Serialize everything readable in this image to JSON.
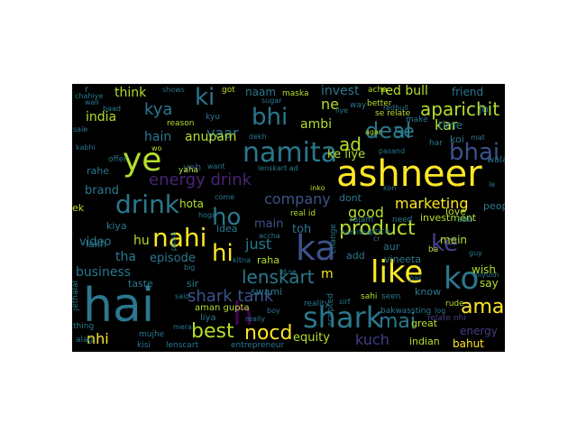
{
  "words": [
    {
      "text": "ashneer",
      "color": "#fde725"
    },
    {
      "text": "hai",
      "color": "#2a788e"
    },
    {
      "text": "like",
      "color": "#fde725"
    },
    {
      "text": "ka",
      "color": "#3b528b"
    },
    {
      "text": "ko",
      "color": "#2a788e"
    },
    {
      "text": "shark",
      "color": "#2a788e"
    },
    {
      "text": "namita",
      "color": "#2a788e"
    },
    {
      "text": "ye",
      "color": "#b5de2b"
    },
    {
      "text": "drink",
      "color": "#2a788e"
    },
    {
      "text": "nahi",
      "color": "#fde725"
    },
    {
      "text": "bhi",
      "color": "#2a788e"
    },
    {
      "text": "bhai",
      "color": "#3b528b"
    },
    {
      "text": "aman",
      "color": "#fde725"
    },
    {
      "text": "product",
      "color": "#b5de2b"
    },
    {
      "text": "ke",
      "color": "#433e85"
    },
    {
      "text": "ho",
      "color": "#2a788e"
    },
    {
      "text": "hi",
      "color": "#fde725"
    },
    {
      "text": "lenskart",
      "color": "#2a788e"
    },
    {
      "text": "deal",
      "color": "#2a788e"
    },
    {
      "text": "aparichit",
      "color": "#b5de2b"
    },
    {
      "text": "ki",
      "color": "#2a788e"
    },
    {
      "text": "h",
      "color": "#440154"
    },
    {
      "text": "best",
      "color": "#b5de2b"
    },
    {
      "text": "nocd",
      "color": "#fde725"
    },
    {
      "text": "mai",
      "color": "#2a788e"
    },
    {
      "text": "shark tank",
      "color": "#3b528b"
    },
    {
      "text": "energy drink",
      "color": "#482475"
    },
    {
      "text": "marketing",
      "color": "#fde725"
    },
    {
      "text": "company",
      "color": "#3b528b"
    },
    {
      "text": "kya",
      "color": "#2a788e"
    },
    {
      "text": "kuch",
      "color": "#433e85"
    },
    {
      "text": "good",
      "color": "#b5de2b"
    },
    {
      "text": "se",
      "color": "#2a788e"
    },
    {
      "text": "kar",
      "color": "#b5de2b"
    },
    {
      "text": "ad",
      "color": "#b5de2b"
    },
    {
      "text": "just",
      "color": "#2a788e"
    },
    {
      "text": "hota",
      "color": "#b5de2b"
    },
    {
      "text": "mein",
      "color": "#b5de2b"
    },
    {
      "text": "hu",
      "color": "#b5de2b"
    },
    {
      "text": "nhi",
      "color": "#fde725"
    },
    {
      "text": "business",
      "color": "#2a788e"
    },
    {
      "text": "invest",
      "color": "#2a788e"
    },
    {
      "text": "red bull",
      "color": "#b5de2b"
    },
    {
      "text": "ne",
      "color": "#b5de2b"
    },
    {
      "text": "yaar",
      "color": "#2a788e"
    },
    {
      "text": "hain",
      "color": "#2a788e"
    },
    {
      "text": "anupam",
      "color": "#b5de2b"
    },
    {
      "text": "india",
      "color": "#b5de2b"
    },
    {
      "text": "think",
      "color": "#b5de2b"
    },
    {
      "text": "ambi",
      "color": "#b5de2b"
    },
    {
      "text": "time",
      "color": "#2a788e"
    },
    {
      "text": "episode",
      "color": "#2a788e"
    },
    {
      "text": "tha",
      "color": "#2a788e"
    },
    {
      "text": "brand",
      "color": "#2a788e"
    },
    {
      "text": "ke liye",
      "color": "#b5de2b"
    },
    {
      "text": "toh",
      "color": "#2a788e"
    },
    {
      "text": "main",
      "color": "#3b528b"
    },
    {
      "text": "investment",
      "color": "#b5de2b"
    },
    {
      "text": "video",
      "color": "#2a788e"
    },
    {
      "text": "equity",
      "color": "#b5de2b"
    },
    {
      "text": "indian",
      "color": "#b5de2b"
    },
    {
      "text": "energy",
      "color": "#433e85"
    },
    {
      "text": "bahut",
      "color": "#fde725"
    },
    {
      "text": "friend",
      "color": "#2a788e"
    },
    {
      "text": "naam",
      "color": "#2a788e"
    },
    {
      "text": "jo",
      "color": "#2a788e"
    },
    {
      "text": "wish",
      "color": "#b5de2b"
    },
    {
      "text": "say",
      "color": "#b5de2b"
    },
    {
      "text": "koi",
      "color": "#2a788e"
    },
    {
      "text": "love",
      "color": "#b5de2b"
    },
    {
      "text": "know",
      "color": "#2a788e"
    },
    {
      "text": "vineeta",
      "color": "#2a788e"
    },
    {
      "text": "aur",
      "color": "#2a788e"
    },
    {
      "text": "add",
      "color": "#2a788e"
    },
    {
      "text": "sir",
      "color": "#2a788e"
    },
    {
      "text": "m",
      "color": "#fde725"
    },
    {
      "text": "swami",
      "color": "#2a788e"
    },
    {
      "text": "taste",
      "color": "#2a788e"
    },
    {
      "text": "aman gupta",
      "color": "#b5de2b"
    },
    {
      "text": "great",
      "color": "#b5de2b"
    },
    {
      "text": "people",
      "color": "#2a788e"
    },
    {
      "text": "raha",
      "color": "#b5de2b"
    },
    {
      "text": "idea",
      "color": "#2a788e"
    },
    {
      "text": "kiya",
      "color": "#2a788e"
    },
    {
      "text": "lakh",
      "color": "#2a788e"
    },
    {
      "text": "ek",
      "color": "#b5de2b"
    },
    {
      "text": "dont",
      "color": "#2a788e"
    },
    {
      "text": "rahe",
      "color": "#2a788e"
    },
    {
      "text": "wala",
      "color": "#2a788e"
    },
    {
      "text": "yeh",
      "color": "#3b528b"
    },
    {
      "text": "liya",
      "color": "#2a788e"
    },
    {
      "text": "sab",
      "color": "#2a788e"
    },
    {
      "text": "relate nhi",
      "color": "#433e85"
    },
    {
      "text": "real id",
      "color": "#b5de2b"
    },
    {
      "text": "need",
      "color": "#2a788e"
    },
    {
      "text": "rajam",
      "color": "#2a788e"
    },
    {
      "text": "price",
      "color": "#2a788e"
    },
    {
      "text": "yaha",
      "color": "#b5de2b"
    },
    {
      "text": "offer",
      "color": "#2a788e"
    },
    {
      "text": "sahi",
      "color": "#b5de2b"
    },
    {
      "text": "seen",
      "color": "#2a788e"
    },
    {
      "text": "bakwassting",
      "color": "#2a788e"
    },
    {
      "text": "rude",
      "color": "#b5de2b"
    },
    {
      "text": "reality",
      "color": "#2a788e"
    },
    {
      "text": "entrepreneur",
      "color": "#2a788e"
    },
    {
      "text": "lenscart",
      "color": "#2a788e"
    },
    {
      "text": "kisi",
      "color": "#2a788e"
    },
    {
      "text": "mujhe",
      "color": "#2a788e"
    },
    {
      "text": "thing",
      "color": "#2a788e"
    },
    {
      "text": "alag",
      "color": "#2a788e"
    },
    {
      "text": "better",
      "color": "#b5de2b"
    },
    {
      "text": "se relate",
      "color": "#b5de2b"
    },
    {
      "text": "way",
      "color": "#2a788e"
    },
    {
      "text": "acha",
      "color": "#b5de2b"
    },
    {
      "text": "got",
      "color": "#b5de2b"
    },
    {
      "text": "maska",
      "color": "#b5de2b"
    },
    {
      "text": "shows",
      "color": "#2a788e"
    },
    {
      "text": "chahiye",
      "color": "#2a788e"
    },
    {
      "text": "wali",
      "color": "#2a788e"
    },
    {
      "text": "baad",
      "color": "#2a788e"
    },
    {
      "text": "sale",
      "color": "#2a788e"
    },
    {
      "text": "reason",
      "color": "#b5de2b"
    },
    {
      "text": "kyu",
      "color": "#2a788e"
    },
    {
      "text": "make",
      "color": "#2a788e"
    },
    {
      "text": "har",
      "color": "#2a788e"
    },
    {
      "text": "mat",
      "color": "#2a788e"
    },
    {
      "text": "pasand",
      "color": "#2a788e"
    },
    {
      "text": "kabhi",
      "color": "#2a788e"
    },
    {
      "text": "wo",
      "color": "#b5de2b"
    },
    {
      "text": "dekh",
      "color": "#2a788e"
    },
    {
      "text": "want",
      "color": "#2a788e"
    },
    {
      "text": "lenskart ad",
      "color": "#2a788e"
    },
    {
      "text": "inko",
      "color": "#b5de2b"
    },
    {
      "text": "kon",
      "color": "#2a788e"
    },
    {
      "text": "come",
      "color": "#2a788e"
    },
    {
      "text": "hoga",
      "color": "#2a788e"
    },
    {
      "text": "accha",
      "color": "#2a788e"
    },
    {
      "text": "namitha",
      "color": "#2a788e"
    },
    {
      "text": "cr",
      "color": "#2a788e"
    },
    {
      "text": "kitna",
      "color": "#2a788e"
    },
    {
      "text": "big",
      "color": "#2a788e"
    },
    {
      "text": "id se",
      "color": "#2a788e"
    },
    {
      "text": "said",
      "color": "#2a788e"
    },
    {
      "text": "mera",
      "color": "#2a788e"
    },
    {
      "text": "boy",
      "color": "#2a788e"
    },
    {
      "text": "really",
      "color": "#2a788e"
    },
    {
      "text": "sirf",
      "color": "#2a788e"
    },
    {
      "text": "par",
      "color": "#2a788e"
    },
    {
      "text": "piyush",
      "color": "#2a788e"
    },
    {
      "text": "log",
      "color": "#2a788e"
    },
    {
      "text": "redbull",
      "color": "#2a788e"
    },
    {
      "text": "sugar",
      "color": "#2a788e"
    },
    {
      "text": "liye",
      "color": "#2a788e"
    },
    {
      "text": "agar",
      "color": "#b5de2b"
    },
    {
      "text": "ba",
      "color": "#b5de2b"
    },
    {
      "text": "guy",
      "color": "#2a788e"
    },
    {
      "text": "le",
      "color": "#2a788e"
    },
    {
      "text": "r",
      "color": "#2a788e"
    },
    {
      "text": "jethalal",
      "color": "#2a788e"
    },
    {
      "text": "scripted",
      "color": "#2a788e"
    },
    {
      "text": "change",
      "color": "#2a788e"
    },
    {
      "text": "paisa",
      "color": "#2a788e"
    }
  ]
}
